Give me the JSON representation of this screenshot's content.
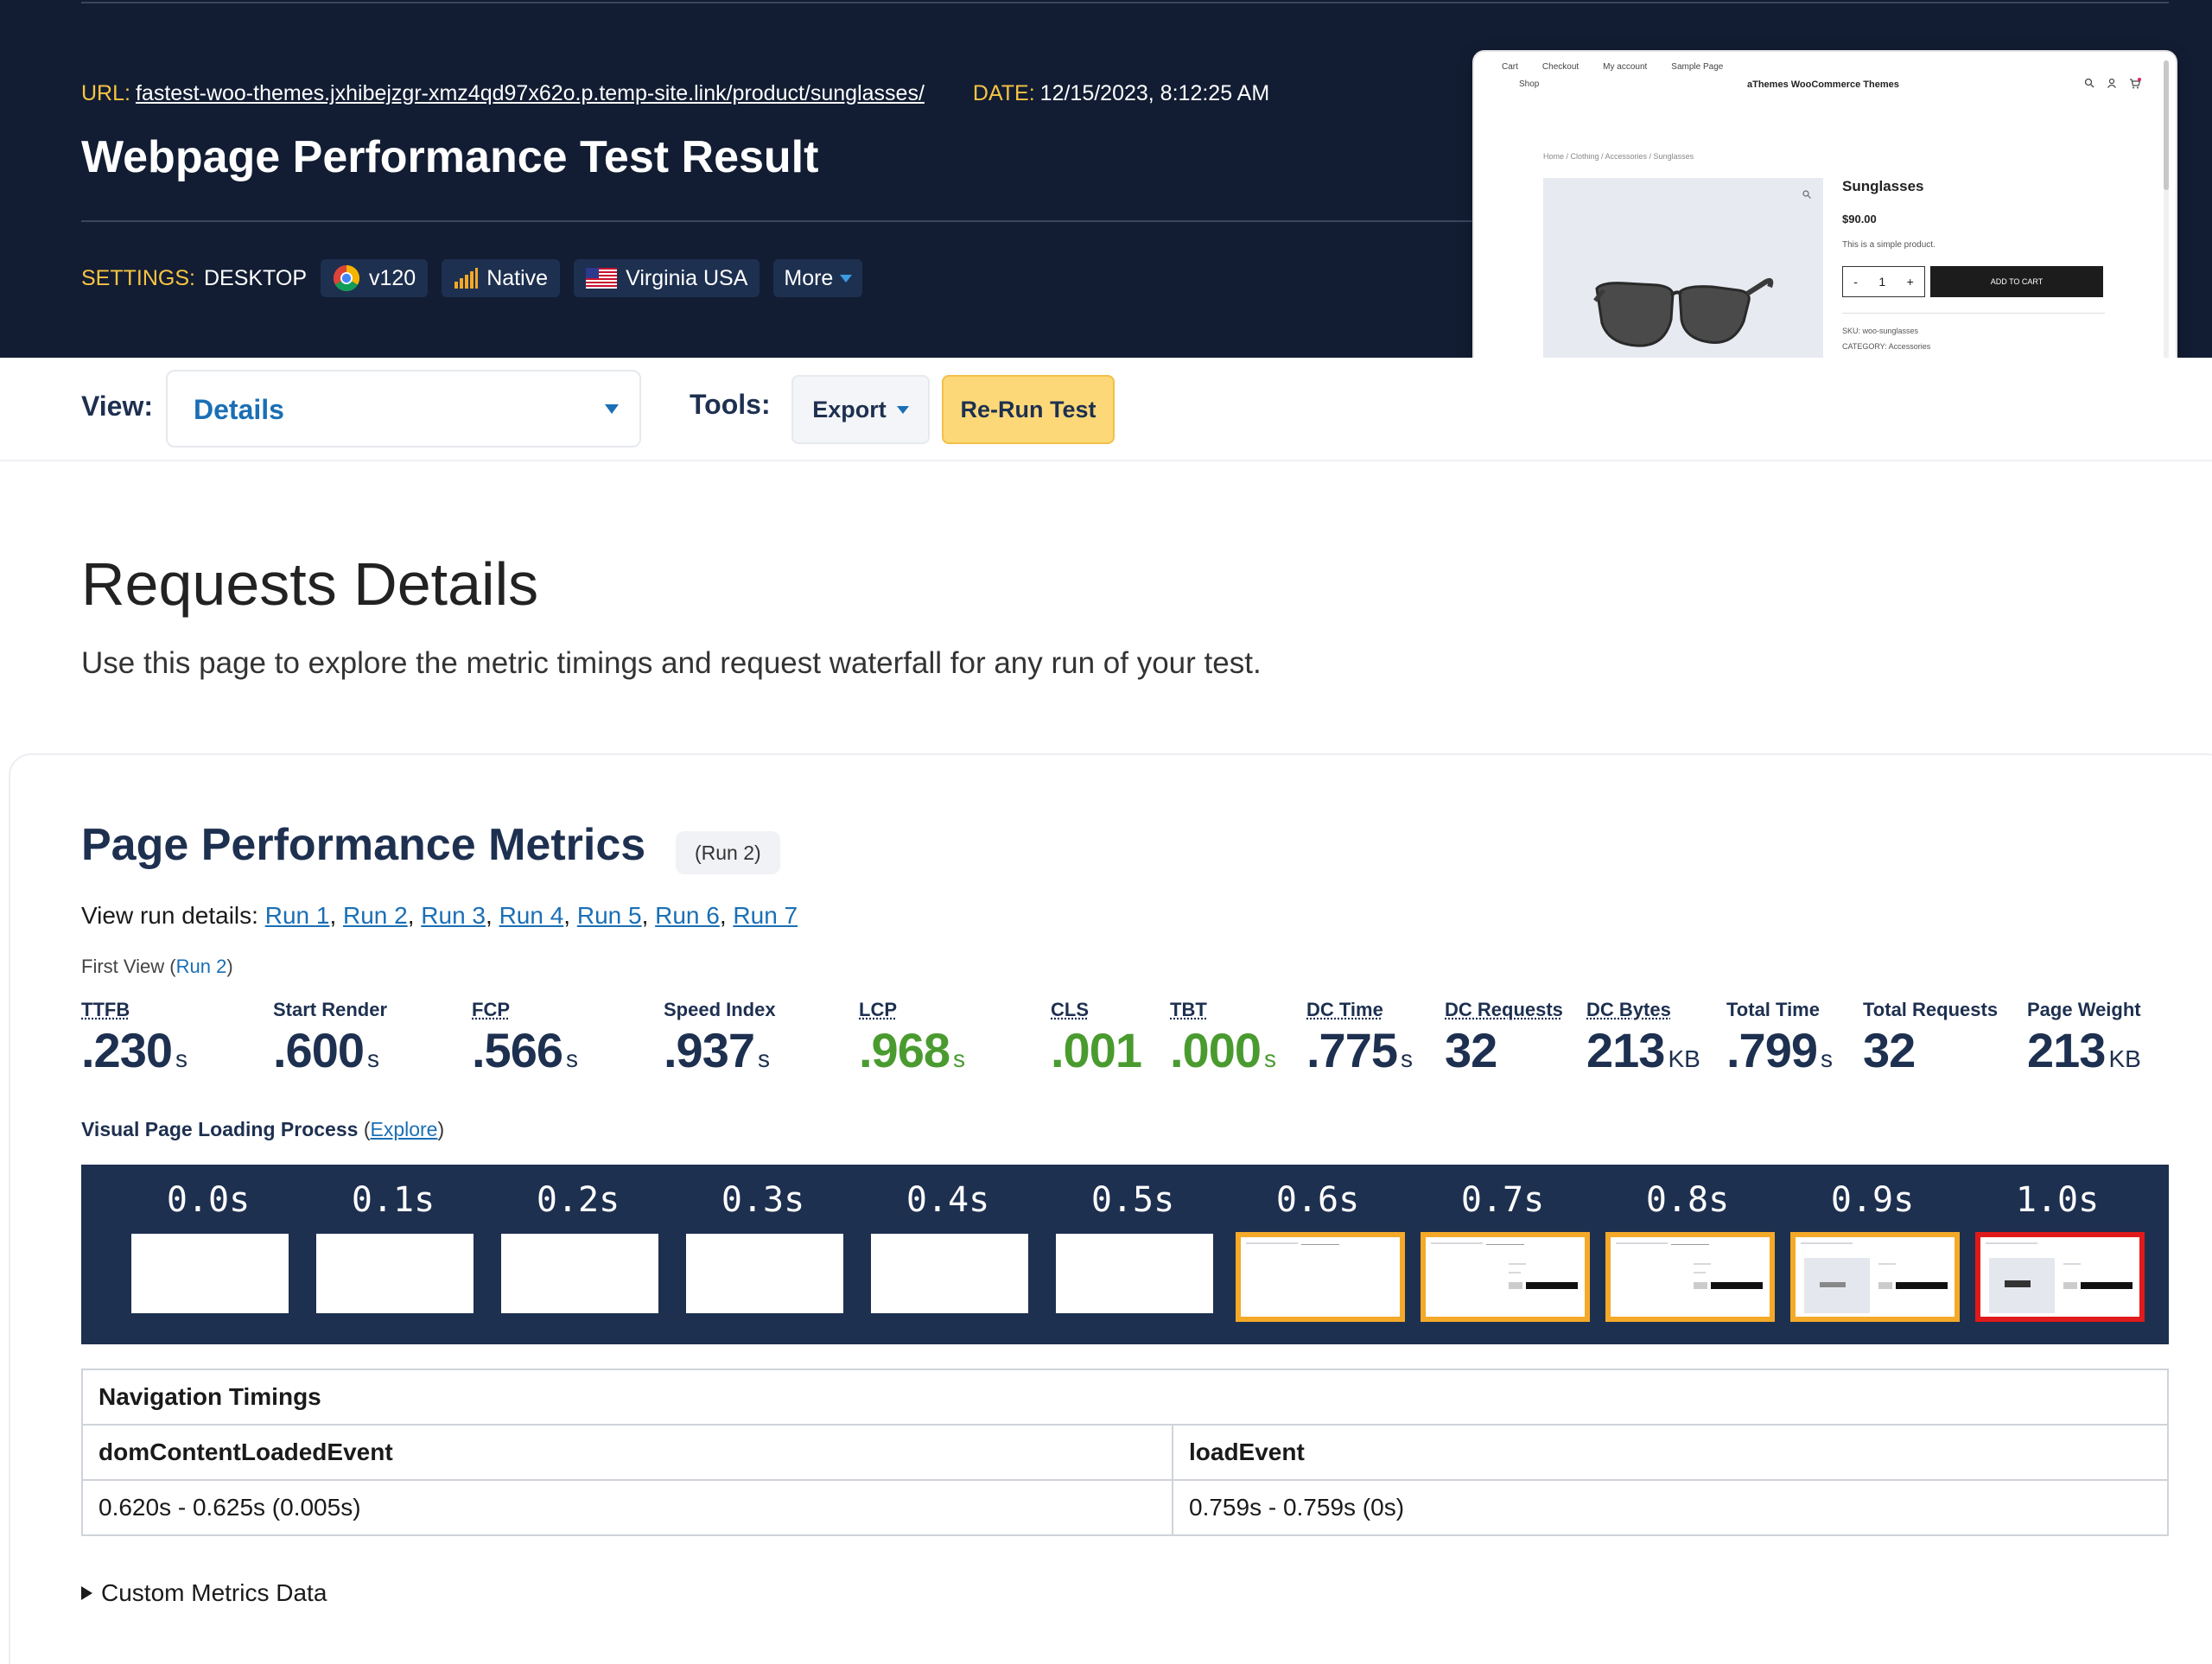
{
  "header": {
    "url_label": "URL:",
    "url_value": "fastest-woo-themes.jxhibejzgr-xmz4qd97x62o.p.temp-site.link/product/sunglasses/",
    "date_label": "DATE:",
    "date_value": "12/15/2023, 8:12:25 AM",
    "title": "Webpage Performance Test Result",
    "settings_label": "SETTINGS:",
    "device": "DESKTOP",
    "browser": "v120",
    "connection": "Native",
    "location": "Virginia USA",
    "more": "More"
  },
  "screenshot": {
    "nav": [
      "Cart",
      "Checkout",
      "My account",
      "Sample Page"
    ],
    "shop": "Shop",
    "brand": "aThemes WooCommerce Themes",
    "breadcrumb": "Home / Clothing / Accessories / Sunglasses",
    "product_title": "Sunglasses",
    "price": "$90.00",
    "description": "This is a simple product.",
    "qty": "1",
    "cart_button": "ADD TO CART",
    "sku": "SKU: woo-sunglasses",
    "category": "CATEGORY: Accessories"
  },
  "toolbar": {
    "view_label": "View:",
    "view_value": "Details",
    "tools_label": "Tools:",
    "export_label": "Export",
    "rerun_label": "Re-Run Test"
  },
  "intro": {
    "title": "Requests Details",
    "description": "Use this page to explore the metric timings and request waterfall for any run of your test."
  },
  "metrics_section": {
    "title": "Page Performance Metrics",
    "run_badge": "(Run 2)",
    "run_links_prefix": "View run details:",
    "runs": [
      "Run 1",
      "Run 2",
      "Run 3",
      "Run 4",
      "Run 5",
      "Run 6",
      "Run 7"
    ],
    "first_view_prefix": "First View (",
    "first_view_run": "Run 2",
    "first_view_suffix": ")",
    "metrics": [
      {
        "label": "TTFB",
        "value": ".230",
        "unit": "s",
        "green": false
      },
      {
        "label": "Start Render",
        "value": ".600",
        "unit": "s",
        "green": false
      },
      {
        "label": "FCP",
        "value": ".566",
        "unit": "s",
        "green": false
      },
      {
        "label": "Speed Index",
        "value": ".937",
        "unit": "s",
        "green": false
      },
      {
        "label": "LCP",
        "value": ".968",
        "unit": "s",
        "green": true
      },
      {
        "label": "CLS",
        "value": ".001",
        "unit": "",
        "green": true
      },
      {
        "label": "TBT",
        "value": ".000",
        "unit": "s",
        "green": true
      },
      {
        "label": "DC Time",
        "value": ".775",
        "unit": "s",
        "green": false
      },
      {
        "label": "DC Requests",
        "value": "32",
        "unit": "",
        "green": false
      },
      {
        "label": "DC Bytes",
        "value": "213",
        "unit": "KB",
        "green": false
      },
      {
        "label": "Total Time",
        "value": ".799",
        "unit": "s",
        "green": false
      },
      {
        "label": "Total Requests",
        "value": "32",
        "unit": "",
        "green": false
      },
      {
        "label": "Page Weight",
        "value": "213",
        "unit": "KB",
        "green": false
      }
    ],
    "visual_label": "Visual Page Loading Process",
    "explore_link": "Explore",
    "filmstrip": [
      {
        "time": "0.0s",
        "state": "blank"
      },
      {
        "time": "0.1s",
        "state": "blank"
      },
      {
        "time": "0.2s",
        "state": "blank"
      },
      {
        "time": "0.3s",
        "state": "blank"
      },
      {
        "time": "0.4s",
        "state": "blank"
      },
      {
        "time": "0.5s",
        "state": "blank"
      },
      {
        "time": "0.6s",
        "state": "changed"
      },
      {
        "time": "0.7s",
        "state": "changed"
      },
      {
        "time": "0.8s",
        "state": "changed"
      },
      {
        "time": "0.9s",
        "state": "changed"
      },
      {
        "time": "1.0s",
        "state": "final"
      }
    ],
    "nav_timings": {
      "title": "Navigation Timings",
      "col1_header": "domContentLoadedEvent",
      "col2_header": "loadEvent",
      "col1_value": "0.620s - 0.625s (0.005s)",
      "col2_value": "0.759s - 0.759s (0s)"
    },
    "custom_metrics": "Custom Metrics Data"
  },
  "colors": {
    "header_bg": "#121d33",
    "accent_yellow": "#f7c443",
    "navy_text": "#1e3050",
    "link_blue": "#1a6fb5",
    "good_green": "#4a9b2f",
    "rerun_bg": "#fcd878",
    "frame_changed": "#f4a928",
    "frame_final": "#e01a1a"
  },
  "icons": {
    "browser": "chrome-icon",
    "connection": "signal-bars-icon",
    "location": "us-flag-icon",
    "more": "caret-down-icon"
  }
}
